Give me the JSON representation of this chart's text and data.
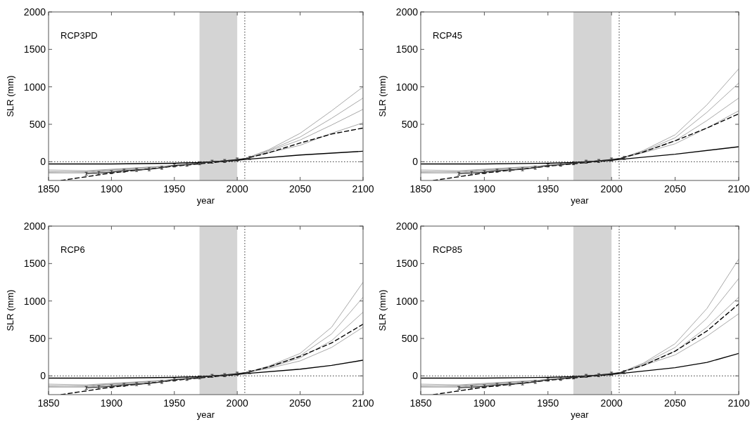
{
  "chart_data": [
    {
      "type": "line",
      "title": "RCP3PD",
      "xlabel": "year",
      "ylabel": "SLR (mm)",
      "xlim": [
        1850,
        2100
      ],
      "ylim": [
        -250,
        2000
      ],
      "xticks": [
        1850,
        1900,
        1950,
        2000,
        2050,
        2100
      ],
      "yticks": [
        0,
        500,
        1000,
        1500,
        2000
      ],
      "bands": [
        {
          "axis": "x",
          "from": 1970,
          "to": 2000,
          "color": "#d4d4d4"
        }
      ],
      "ref_lines": [
        {
          "axis": "y",
          "value": 0,
          "color": "#000000",
          "line_style": "dotted"
        },
        {
          "axis": "x",
          "value": 2006,
          "color": "#000000",
          "line_style": "dotted"
        }
      ],
      "series": [
        {
          "color": "#a8a8a8",
          "x": [
            1850,
            1880,
            1950,
            2006,
            2025,
            2050,
            2075,
            2100
          ],
          "values": [
            -110,
            -120,
            -50,
            40,
            160,
            380,
            680,
            1000
          ]
        },
        {
          "color": "#a8a8a8",
          "x": [
            1850,
            1880,
            1950,
            2006,
            2025,
            2050,
            2075,
            2100
          ],
          "values": [
            -130,
            -140,
            -50,
            40,
            150,
            330,
            580,
            850
          ]
        },
        {
          "color": "#a8a8a8",
          "x": [
            1850,
            1880,
            1950,
            2006,
            2025,
            2050,
            2075,
            2100
          ],
          "values": [
            -150,
            -150,
            -50,
            40,
            140,
            290,
            490,
            700
          ]
        },
        {
          "color": "#a8a8a8",
          "x": [
            1850,
            1880,
            1950,
            2006,
            2025,
            2050,
            2075,
            2100
          ],
          "values": [
            -140,
            -130,
            -50,
            40,
            120,
            220,
            380,
            520
          ]
        },
        {
          "color": "#000000",
          "line_style": "dashed",
          "x": [
            1860,
            1880,
            1900,
            1950,
            2000,
            2006,
            2025,
            2050,
            2075,
            2100
          ],
          "values": [
            -250,
            -200,
            -150,
            -60,
            20,
            40,
            120,
            250,
            370,
            450
          ]
        },
        {
          "color": "#000000",
          "x": [
            1850,
            1900,
            1950,
            1970,
            2000,
            2006,
            2050,
            2100
          ],
          "values": [
            -30,
            -30,
            -20,
            -10,
            20,
            30,
            90,
            140
          ]
        },
        {
          "color": "#333333",
          "x": [
            1880,
            1890,
            1900,
            1910,
            1920,
            1930,
            1940,
            1950,
            1960,
            1970,
            1980,
            1990,
            2000,
            2010
          ],
          "values": [
            -160,
            -150,
            -140,
            -120,
            -110,
            -100,
            -80,
            -50,
            -40,
            -20,
            0,
            10,
            30,
            50
          ],
          "errors": [
            20,
            20,
            20,
            20,
            20,
            20,
            20,
            20,
            20,
            20,
            20,
            20,
            20,
            20
          ]
        }
      ]
    },
    {
      "type": "line",
      "title": "RCP45",
      "xlabel": "year",
      "ylabel": "SLR (mm)",
      "xlim": [
        1850,
        2100
      ],
      "ylim": [
        -250,
        2000
      ],
      "xticks": [
        1850,
        1900,
        1950,
        2000,
        2050,
        2100
      ],
      "yticks": [
        0,
        500,
        1000,
        1500,
        2000
      ],
      "bands": [
        {
          "axis": "x",
          "from": 1970,
          "to": 2000,
          "color": "#d4d4d4"
        }
      ],
      "ref_lines": [
        {
          "axis": "y",
          "value": 0,
          "color": "#000000",
          "line_style": "dotted"
        },
        {
          "axis": "x",
          "value": 2006,
          "color": "#000000",
          "line_style": "dotted"
        }
      ],
      "series": [
        {
          "color": "#a8a8a8",
          "x": [
            1850,
            1880,
            1950,
            2006,
            2025,
            2050,
            2075,
            2100
          ],
          "values": [
            -110,
            -120,
            -50,
            40,
            150,
            360,
            760,
            1240
          ]
        },
        {
          "color": "#a8a8a8",
          "x": [
            1850,
            1880,
            1950,
            2006,
            2025,
            2050,
            2075,
            2100
          ],
          "values": [
            -130,
            -140,
            -50,
            40,
            140,
            320,
            660,
            1050
          ]
        },
        {
          "color": "#a8a8a8",
          "x": [
            1850,
            1880,
            1950,
            2006,
            2025,
            2050,
            2075,
            2100
          ],
          "values": [
            -150,
            -150,
            -50,
            40,
            130,
            280,
            550,
            850
          ]
        },
        {
          "color": "#a8a8a8",
          "x": [
            1850,
            1880,
            1950,
            2006,
            2025,
            2050,
            2075,
            2100
          ],
          "values": [
            -140,
            -130,
            -50,
            40,
            120,
            240,
            450,
            680
          ]
        },
        {
          "color": "#000000",
          "line_style": "dashed",
          "x": [
            1860,
            1880,
            1900,
            1950,
            2000,
            2006,
            2025,
            2050,
            2075,
            2100
          ],
          "values": [
            -250,
            -200,
            -150,
            -60,
            20,
            40,
            130,
            280,
            450,
            640
          ]
        },
        {
          "color": "#000000",
          "x": [
            1850,
            1900,
            1950,
            1970,
            2000,
            2006,
            2050,
            2100
          ],
          "values": [
            -30,
            -30,
            -20,
            -10,
            20,
            30,
            100,
            200
          ]
        },
        {
          "color": "#333333",
          "x": [
            1880,
            1890,
            1900,
            1910,
            1920,
            1930,
            1940,
            1950,
            1960,
            1970,
            1980,
            1990,
            2000,
            2010
          ],
          "values": [
            -160,
            -150,
            -140,
            -120,
            -110,
            -100,
            -80,
            -50,
            -40,
            -20,
            0,
            10,
            30,
            50
          ],
          "errors": [
            20,
            20,
            20,
            20,
            20,
            20,
            20,
            20,
            20,
            20,
            20,
            20,
            20,
            20
          ]
        }
      ]
    },
    {
      "type": "line",
      "title": "RCP6",
      "xlabel": "year",
      "ylabel": "SLR (mm)",
      "xlim": [
        1850,
        2100
      ],
      "ylim": [
        -250,
        2000
      ],
      "xticks": [
        1850,
        1900,
        1950,
        2000,
        2050,
        2100
      ],
      "yticks": [
        0,
        500,
        1000,
        1500,
        2000
      ],
      "bands": [
        {
          "axis": "x",
          "from": 1970,
          "to": 2000,
          "color": "#d4d4d4"
        }
      ],
      "ref_lines": [
        {
          "axis": "y",
          "value": 0,
          "color": "#000000",
          "line_style": "dotted"
        },
        {
          "axis": "x",
          "value": 2006,
          "color": "#000000",
          "line_style": "dotted"
        }
      ],
      "series": [
        {
          "color": "#a8a8a8",
          "x": [
            1850,
            1880,
            1950,
            2006,
            2025,
            2050,
            2075,
            2100
          ],
          "values": [
            -110,
            -120,
            -50,
            40,
            130,
            300,
            650,
            1250
          ]
        },
        {
          "color": "#a8a8a8",
          "x": [
            1850,
            1880,
            1950,
            2006,
            2025,
            2050,
            2075,
            2100
          ],
          "values": [
            -130,
            -140,
            -50,
            40,
            120,
            270,
            560,
            1050
          ]
        },
        {
          "color": "#a8a8a8",
          "x": [
            1850,
            1880,
            1950,
            2006,
            2025,
            2050,
            2075,
            2100
          ],
          "values": [
            -150,
            -150,
            -50,
            40,
            110,
            240,
            470,
            850
          ]
        },
        {
          "color": "#a8a8a8",
          "x": [
            1850,
            1880,
            1950,
            2006,
            2025,
            2050,
            2075,
            2100
          ],
          "values": [
            -140,
            -130,
            -50,
            40,
            100,
            200,
            380,
            650
          ]
        },
        {
          "color": "#000000",
          "line_style": "dashed",
          "x": [
            1860,
            1880,
            1900,
            1950,
            2000,
            2006,
            2025,
            2050,
            2075,
            2100
          ],
          "values": [
            -250,
            -200,
            -150,
            -60,
            20,
            40,
            120,
            260,
            440,
            690
          ]
        },
        {
          "color": "#000000",
          "x": [
            1850,
            1900,
            1950,
            1970,
            2000,
            2006,
            2050,
            2075,
            2100
          ],
          "values": [
            -30,
            -30,
            -20,
            -10,
            20,
            30,
            90,
            140,
            210
          ]
        },
        {
          "color": "#333333",
          "x": [
            1880,
            1890,
            1900,
            1910,
            1920,
            1930,
            1940,
            1950,
            1960,
            1970,
            1980,
            1990,
            2000,
            2010
          ],
          "values": [
            -160,
            -150,
            -140,
            -120,
            -110,
            -100,
            -80,
            -50,
            -40,
            -20,
            0,
            10,
            30,
            50
          ],
          "errors": [
            20,
            20,
            20,
            20,
            20,
            20,
            20,
            20,
            20,
            20,
            20,
            20,
            20,
            20
          ]
        }
      ]
    },
    {
      "type": "line",
      "title": "RCP85",
      "xlabel": "year",
      "ylabel": "SLR (mm)",
      "xlim": [
        1850,
        2100
      ],
      "ylim": [
        -250,
        2000
      ],
      "xticks": [
        1850,
        1900,
        1950,
        2000,
        2050,
        2100
      ],
      "yticks": [
        0,
        500,
        1000,
        1500,
        2000
      ],
      "bands": [
        {
          "axis": "x",
          "from": 1970,
          "to": 2000,
          "color": "#d4d4d4"
        }
      ],
      "ref_lines": [
        {
          "axis": "y",
          "value": 0,
          "color": "#000000",
          "line_style": "dotted"
        },
        {
          "axis": "x",
          "value": 2006,
          "color": "#000000",
          "line_style": "dotted"
        }
      ],
      "series": [
        {
          "color": "#a8a8a8",
          "x": [
            1850,
            1880,
            1950,
            2006,
            2025,
            2050,
            2075,
            2100
          ],
          "values": [
            -110,
            -120,
            -50,
            40,
            170,
            430,
            900,
            1560
          ]
        },
        {
          "color": "#a8a8a8",
          "x": [
            1850,
            1880,
            1950,
            2006,
            2025,
            2050,
            2075,
            2100
          ],
          "values": [
            -130,
            -140,
            -50,
            40,
            160,
            380,
            770,
            1300
          ]
        },
        {
          "color": "#a8a8a8",
          "x": [
            1850,
            1880,
            1950,
            2006,
            2025,
            2050,
            2075,
            2100
          ],
          "values": [
            -150,
            -150,
            -50,
            40,
            150,
            330,
            650,
            1050
          ]
        },
        {
          "color": "#a8a8a8",
          "x": [
            1850,
            1880,
            1950,
            2006,
            2025,
            2050,
            2075,
            2100
          ],
          "values": [
            -140,
            -130,
            -50,
            40,
            140,
            280,
            530,
            830
          ]
        },
        {
          "color": "#000000",
          "line_style": "dashed",
          "x": [
            1860,
            1880,
            1900,
            1950,
            2000,
            2006,
            2025,
            2050,
            2075,
            2100
          ],
          "values": [
            -250,
            -200,
            -150,
            -60,
            20,
            40,
            140,
            330,
            600,
            960
          ]
        },
        {
          "color": "#000000",
          "x": [
            1850,
            1900,
            1950,
            1970,
            2000,
            2006,
            2050,
            2075,
            2100
          ],
          "values": [
            -30,
            -30,
            -20,
            -10,
            20,
            30,
            110,
            180,
            300
          ]
        },
        {
          "color": "#333333",
          "x": [
            1880,
            1890,
            1900,
            1910,
            1920,
            1930,
            1940,
            1950,
            1960,
            1970,
            1980,
            1990,
            2000,
            2010
          ],
          "values": [
            -160,
            -150,
            -140,
            -120,
            -110,
            -100,
            -80,
            -50,
            -40,
            -20,
            0,
            10,
            30,
            50
          ],
          "errors": [
            20,
            20,
            20,
            20,
            20,
            20,
            20,
            20,
            20,
            20,
            20,
            20,
            20,
            20
          ]
        }
      ]
    }
  ]
}
